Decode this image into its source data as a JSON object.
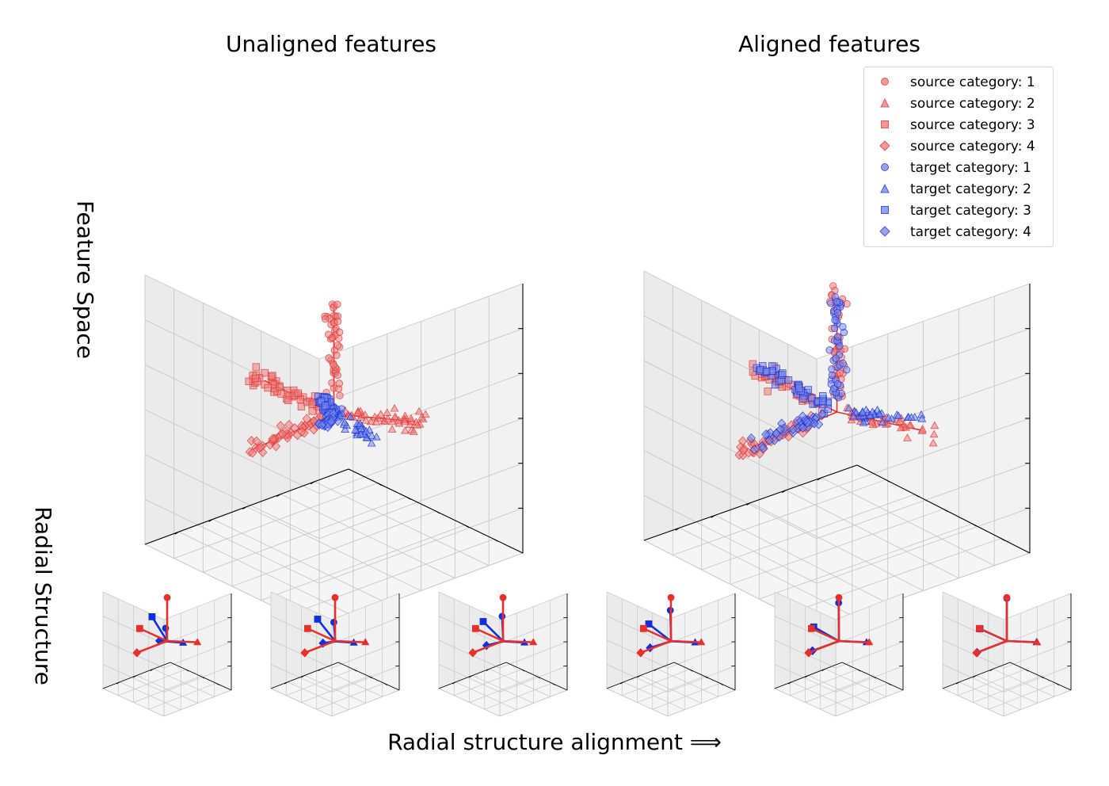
{
  "titles": {
    "left": "Unaligned features",
    "right": "Aligned features",
    "row1_label": "Feature Space",
    "row2_label": "Radial Structure",
    "bottom": "Radial structure alignment ⟹"
  },
  "colors": {
    "source": "#e8302a",
    "target": "#1030e0",
    "source_light": "#e88080",
    "target_light": "#7c8ae6"
  },
  "legend": [
    {
      "label": "source category: 1",
      "domain": "source",
      "marker": "circle"
    },
    {
      "label": "source category: 2",
      "domain": "source",
      "marker": "triangle"
    },
    {
      "label": "source category: 3",
      "domain": "source",
      "marker": "square"
    },
    {
      "label": "source category: 4",
      "domain": "source",
      "marker": "diamond"
    },
    {
      "label": "target category: 1",
      "domain": "target",
      "marker": "circle"
    },
    {
      "label": "target category: 2",
      "domain": "target",
      "marker": "triangle"
    },
    {
      "label": "target category: 3",
      "domain": "target",
      "marker": "square"
    },
    {
      "label": "target category: 4",
      "domain": "target",
      "marker": "diamond"
    }
  ],
  "chart_data": [
    {
      "type": "scatter",
      "projection": "3d",
      "title": "Unaligned features",
      "grid": true,
      "axis_ranges": {
        "x": [
          -1,
          1
        ],
        "y": [
          -1,
          1
        ],
        "z": [
          -1,
          1
        ]
      },
      "series": [
        {
          "name": "source category: 1",
          "direction": [
            0.0,
            0.0,
            1.0
          ],
          "spread_range": [
            0.1,
            0.85
          ],
          "points": 45
        },
        {
          "name": "source category: 2",
          "direction": [
            0.0,
            -1.0,
            -0.35
          ],
          "spread_range": [
            0.1,
            0.9
          ],
          "points": 45
        },
        {
          "name": "source category: 3",
          "direction": [
            -1.0,
            0.0,
            0.0
          ],
          "spread_range": [
            0.1,
            0.95
          ],
          "points": 50
        },
        {
          "name": "source category: 4",
          "direction": [
            0.0,
            1.0,
            -0.05
          ],
          "spread_range": [
            0.1,
            0.8
          ],
          "points": 45
        },
        {
          "name": "target category: 1",
          "direction": [
            0.55,
            0.55,
            0.35
          ],
          "spread_range": [
            0.05,
            0.55
          ],
          "points": 45
        },
        {
          "name": "target category: 2",
          "direction": [
            0.25,
            -0.5,
            -0.4
          ],
          "spread_range": [
            0.05,
            0.55
          ],
          "points": 30
        },
        {
          "name": "target category: 3",
          "direction": [
            -0.5,
            0.0,
            0.25
          ],
          "spread_range": [
            0.05,
            0.3
          ],
          "points": 40
        },
        {
          "name": "target category: 4",
          "direction": [
            0.15,
            0.45,
            -0.1
          ],
          "spread_range": [
            0.05,
            0.3
          ],
          "points": 25
        }
      ]
    },
    {
      "type": "scatter",
      "projection": "3d",
      "title": "Aligned features",
      "grid": true,
      "legend_position": "top-right",
      "axis_ranges": {
        "x": [
          -1,
          1
        ],
        "y": [
          -1,
          1
        ],
        "z": [
          -1,
          1
        ]
      },
      "series": [
        {
          "name": "source category: 1",
          "direction": [
            0.0,
            0.0,
            1.0
          ],
          "spread_range": [
            0.1,
            0.9
          ],
          "points": 45
        },
        {
          "name": "source category: 2",
          "direction": [
            0.0,
            -1.0,
            -0.45
          ],
          "spread_range": [
            0.1,
            0.9
          ],
          "points": 40
        },
        {
          "name": "source category: 3",
          "direction": [
            -1.0,
            0.0,
            0.0
          ],
          "spread_range": [
            0.1,
            0.95
          ],
          "points": 45
        },
        {
          "name": "source category: 4",
          "direction": [
            0.0,
            1.0,
            -0.05
          ],
          "spread_range": [
            0.1,
            0.9
          ],
          "points": 45
        },
        {
          "name": "target category: 1",
          "direction": [
            0.0,
            0.0,
            1.0
          ],
          "spread_range": [
            0.1,
            0.9
          ],
          "points": 45
        },
        {
          "name": "target category: 2",
          "direction": [
            0.0,
            -1.0,
            -0.35
          ],
          "spread_range": [
            0.1,
            0.75
          ],
          "points": 35
        },
        {
          "name": "target category: 3",
          "direction": [
            -1.0,
            0.0,
            0.05
          ],
          "spread_range": [
            0.1,
            0.9
          ],
          "points": 45
        },
        {
          "name": "target category: 4",
          "direction": [
            0.0,
            1.0,
            0.0
          ],
          "spread_range": [
            0.1,
            0.8
          ],
          "points": 40
        }
      ]
    },
    {
      "type": "line",
      "projection": "3d",
      "title": "",
      "panels": 6,
      "description": "Radial structure: category centroids connected to the origin, source vs target, progressively aligned",
      "source_directions": [
        [
          0.0,
          0.0,
          1.0
        ],
        [
          0.0,
          -1.0,
          -0.3
        ],
        [
          -1.0,
          0.0,
          0.0
        ],
        [
          0.0,
          1.0,
          0.0
        ]
      ],
      "target_start": [
        [
          0.55,
          0.55,
          0.6
        ],
        [
          0.25,
          -0.3,
          -0.05
        ],
        [
          -0.55,
          0.0,
          0.4
        ],
        [
          0.05,
          0.3,
          0.1
        ]
      ],
      "alignment_steps": [
        0.0,
        0.2,
        0.4,
        0.6,
        0.85,
        1.0
      ]
    }
  ]
}
